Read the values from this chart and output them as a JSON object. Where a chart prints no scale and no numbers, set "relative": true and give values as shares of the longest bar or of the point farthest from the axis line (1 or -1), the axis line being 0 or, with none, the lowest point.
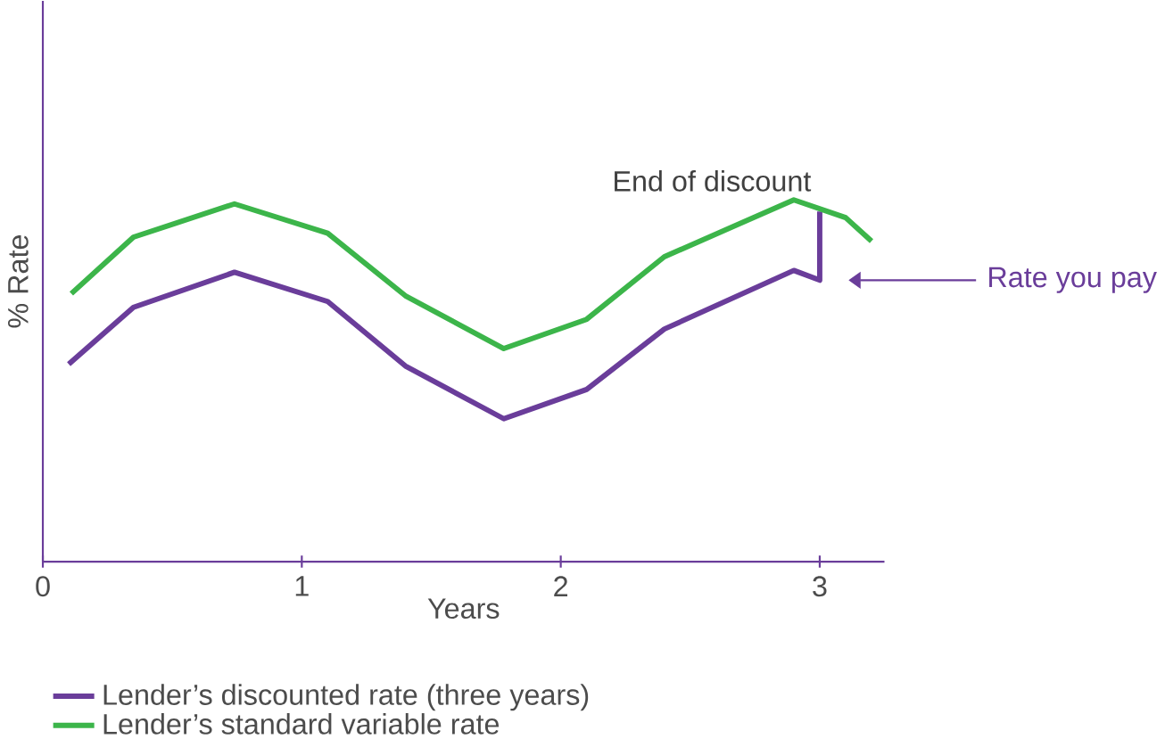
{
  "chart_data": {
    "type": "line",
    "xlabel": "Years",
    "ylabel": "% Rate",
    "relative": true,
    "xlim": [
      0,
      3.25
    ],
    "xticks": [
      0,
      1,
      2,
      3
    ],
    "legend": "bottom",
    "marker": "none",
    "line_style": "solid",
    "annotations": [
      {
        "text": "End of discount",
        "x": 3,
        "y": 1.0
      },
      "Rate you pay"
    ],
    "series": [
      {
        "name": "Lender’s discounted rate (three years)",
        "color": "#6a3d9a",
        "x": [
          0.1,
          0.35,
          0.74,
          1.1,
          1.4,
          1.78,
          2.1,
          2.4,
          2.9,
          3.0,
          3.0
        ],
        "values": [
          0.546,
          0.703,
          0.8,
          0.719,
          0.541,
          0.395,
          0.476,
          0.643,
          0.805,
          0.778,
          0.968
        ]
      },
      {
        "name": "Lender’s standard variable rate",
        "color": "#3cb54a",
        "x": [
          0.11,
          0.35,
          0.74,
          1.1,
          1.4,
          1.78,
          2.1,
          2.4,
          2.9,
          3.1,
          3.2
        ],
        "values": [
          0.741,
          0.897,
          0.989,
          0.908,
          0.735,
          0.589,
          0.67,
          0.843,
          1.0,
          0.951,
          0.886
        ]
      }
    ]
  }
}
